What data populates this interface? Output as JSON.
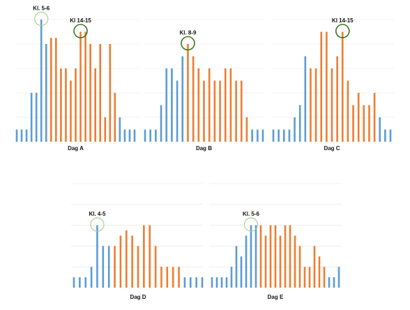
{
  "colors": {
    "morning": "#5b9bd5",
    "afternoon": "#ed7d31",
    "grid": "#e3e3e3",
    "circle_light": "#a9d18e",
    "circle_dark": "#38761d"
  },
  "chart_data": [
    {
      "type": "bar",
      "label": "Dag A",
      "ylim": [
        0,
        10
      ],
      "values": [
        1,
        1,
        1,
        4,
        4,
        10,
        8,
        8.5,
        8.5,
        6,
        6,
        5,
        6,
        9,
        9,
        8,
        6,
        8,
        2,
        8,
        4,
        2,
        1,
        1,
        1
      ],
      "colors": [
        "b",
        "b",
        "b",
        "b",
        "b",
        "b",
        "b",
        "o",
        "o",
        "o",
        "o",
        "o",
        "o",
        "o",
        "o",
        "o",
        "o",
        "o",
        "o",
        "o",
        "o",
        "b",
        "b",
        "b",
        "b"
      ],
      "annotations": [
        {
          "text": "Kl. 5-6",
          "bar": 5,
          "circle": "light"
        },
        {
          "text": "Kl 14-15",
          "bar": 13,
          "circle": "dark"
        }
      ]
    },
    {
      "type": "bar",
      "label": "Dag B",
      "ylim": [
        0,
        10
      ],
      "values": [
        1,
        1,
        1,
        3,
        6,
        6,
        5,
        7,
        8,
        7,
        6,
        5,
        6,
        5,
        5,
        6,
        6,
        5,
        5,
        2,
        1,
        1,
        1
      ],
      "colors": [
        "b",
        "b",
        "b",
        "b",
        "b",
        "b",
        "b",
        "b",
        "o",
        "o",
        "o",
        "o",
        "o",
        "o",
        "o",
        "o",
        "o",
        "o",
        "o",
        "o",
        "b",
        "b",
        "b"
      ],
      "annotations": [
        {
          "text": "Kl. 8-9",
          "bar": 8,
          "circle": "dark"
        }
      ]
    },
    {
      "type": "bar",
      "label": "Dag C",
      "ylim": [
        0,
        10
      ],
      "values": [
        1,
        1,
        1,
        1,
        2,
        3,
        7,
        6,
        6,
        9,
        9,
        6,
        7,
        9,
        5,
        3,
        4,
        3,
        3,
        4,
        2,
        1,
        1
      ],
      "colors": [
        "b",
        "b",
        "b",
        "b",
        "b",
        "b",
        "b",
        "o",
        "o",
        "o",
        "o",
        "o",
        "o",
        "o",
        "o",
        "o",
        "o",
        "o",
        "o",
        "o",
        "b",
        "b",
        "b"
      ],
      "annotations": [
        {
          "text": "Kl 14-15",
          "bar": 13,
          "circle": "dark"
        }
      ]
    },
    {
      "type": "bar",
      "label": "Dag D",
      "ylim": [
        0,
        10
      ],
      "values": [
        1,
        1,
        1,
        2,
        6,
        4,
        4,
        4,
        5,
        5.5,
        5,
        4,
        6,
        6,
        4,
        2,
        2,
        2,
        2,
        1,
        1,
        1,
        1
      ],
      "colors": [
        "b",
        "b",
        "b",
        "b",
        "b",
        "b",
        "b",
        "o",
        "o",
        "o",
        "o",
        "o",
        "o",
        "o",
        "o",
        "o",
        "o",
        "o",
        "o",
        "b",
        "b",
        "b",
        "b"
      ],
      "annotations": [
        {
          "text": "Kl. 4-5",
          "bar": 4,
          "circle": "light"
        }
      ]
    },
    {
      "type": "bar",
      "label": "Dag E",
      "ylim": [
        0,
        10
      ],
      "values": [
        1,
        1,
        1,
        1,
        2,
        4,
        3,
        5,
        6,
        6,
        6,
        5,
        6,
        6,
        5,
        6,
        6,
        5,
        4,
        2,
        2,
        4,
        3,
        2,
        1,
        1,
        2
      ],
      "colors": [
        "b",
        "b",
        "b",
        "b",
        "b",
        "b",
        "b",
        "b",
        "b",
        "b",
        "o",
        "o",
        "o",
        "o",
        "o",
        "o",
        "o",
        "o",
        "o",
        "o",
        "o",
        "o",
        "o",
        "o",
        "b",
        "b",
        "b"
      ],
      "annotations": [
        {
          "text": "Kl. 5-6",
          "bar": 8,
          "circle": "light"
        }
      ]
    }
  ]
}
